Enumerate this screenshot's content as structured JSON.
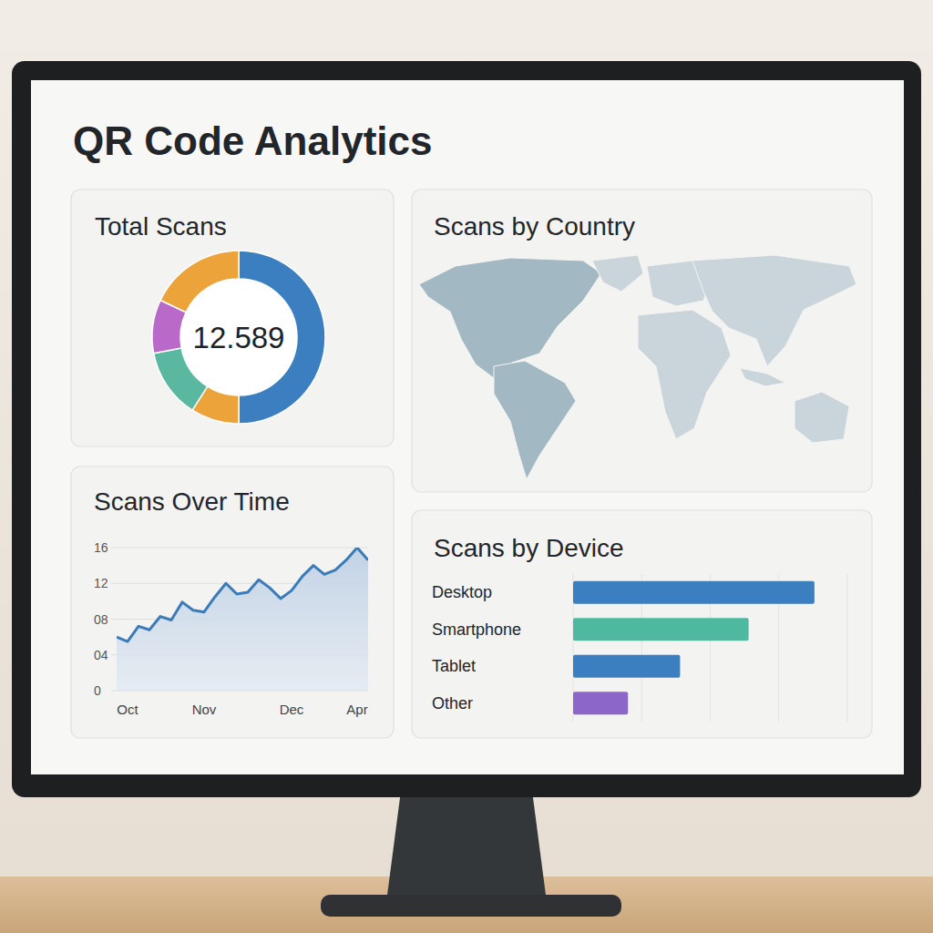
{
  "title": "QR Code Analytics",
  "chart_data": [
    {
      "type": "donut",
      "title": "Total Scans",
      "center_text": "12.589",
      "values": [
        50,
        9,
        13,
        10,
        18
      ],
      "colors": [
        "#3b7fc0",
        "#eca43a",
        "#5bb8a0",
        "#b96ac9",
        "#eca43a"
      ]
    },
    {
      "type": "map",
      "title": "Scans by Country"
    },
    {
      "type": "line",
      "title": "Scans Over Time",
      "categories": [
        null,
        "Oct",
        null,
        null,
        null,
        null,
        null,
        null,
        "Nov",
        null,
        null,
        null,
        null,
        null,
        null,
        null,
        "Dec",
        null,
        null,
        null,
        null,
        null,
        "Apr",
        null
      ],
      "values": [
        6.0,
        5.5,
        7.2,
        6.8,
        8.3,
        7.9,
        9.9,
        9.0,
        8.8,
        10.5,
        12.0,
        10.8,
        11.0,
        12.4,
        11.5,
        10.3,
        11.2,
        12.8,
        14.0,
        13.0,
        13.5,
        14.6,
        16.0,
        14.6
      ],
      "ylim": [
        0,
        16
      ],
      "yticks": [
        0,
        {
          "value": 4,
          "label": "04"
        },
        {
          "value": 8,
          "label": "08"
        },
        12,
        16
      ],
      "grid": true,
      "color": "#3a7bb8"
    },
    {
      "type": "bar",
      "orientation": "horizontal",
      "title": "Scans by Device",
      "categories": [
        "Desktop",
        "Smartphone",
        "Tablet",
        "Other"
      ],
      "values": [
        88,
        64,
        39,
        20
      ],
      "colors": [
        "#3b7fc0",
        "#4fb9a0",
        "#3b7fc0",
        "#8d66c9"
      ],
      "xlim": [
        0,
        100
      ],
      "xticks": [
        25,
        50,
        75,
        100
      ],
      "grid": true,
      "tick_labels": false
    }
  ]
}
